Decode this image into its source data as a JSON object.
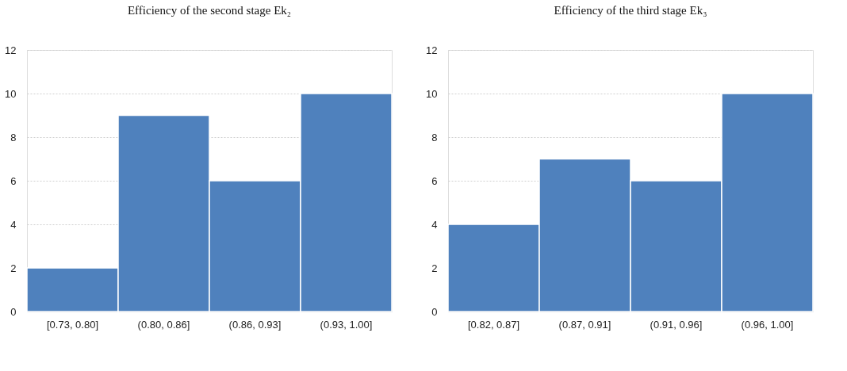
{
  "chart_data": [
    {
      "type": "bar",
      "title": "Efficiency of the second stage Ek₂",
      "categories": [
        "[0.73, 0.80]",
        "(0.80, 0.86]",
        "(0.86, 0.93]",
        "(0.93, 1.00]"
      ],
      "values": [
        2,
        9,
        6,
        10
      ],
      "color": "#4f81bd",
      "ylim": [
        0,
        12
      ],
      "yticks": [
        0,
        2,
        4,
        6,
        8,
        10,
        12
      ],
      "grid": "y"
    },
    {
      "type": "bar",
      "title": "Efficiency of the third stage Ek₃",
      "categories": [
        "[0.82, 0.87]",
        "(0.87, 0.91]",
        "(0.91, 0.96]",
        "(0.96, 1.00]"
      ],
      "values": [
        4,
        7,
        6,
        10
      ],
      "color": "#4f81bd",
      "ylim": [
        0,
        12
      ],
      "yticks": [
        0,
        2,
        4,
        6,
        8,
        10,
        12
      ],
      "grid": "y"
    }
  ]
}
